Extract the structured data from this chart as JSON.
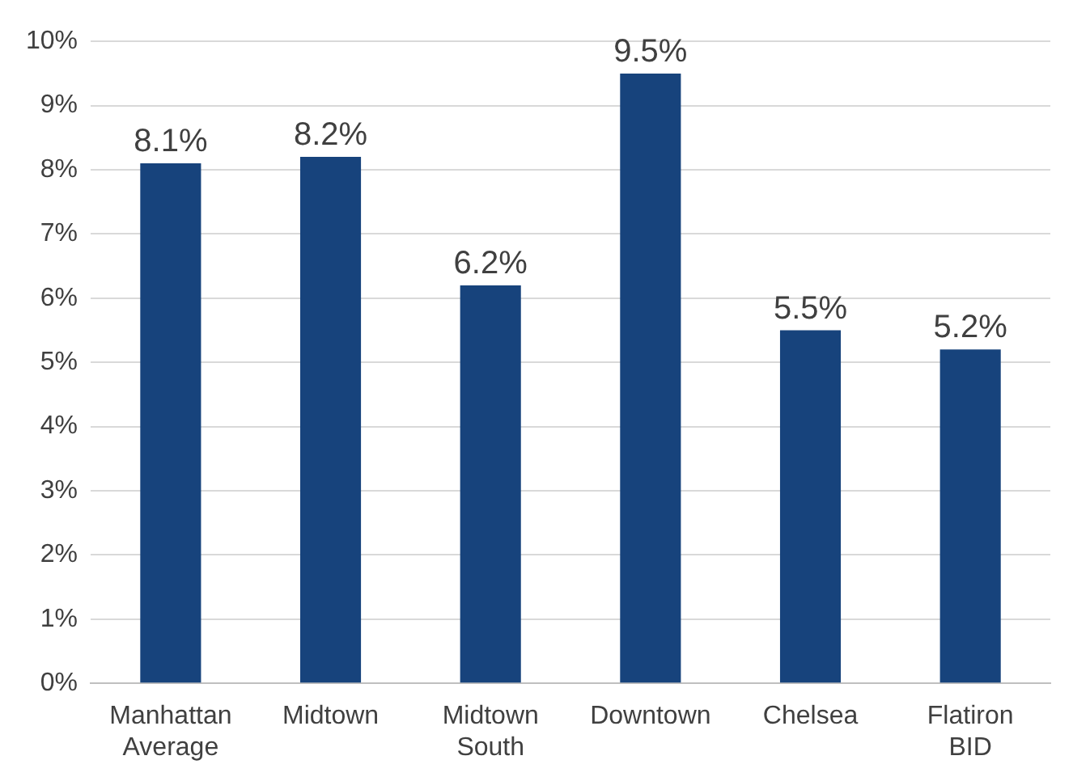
{
  "chart_data": {
    "type": "bar",
    "categories": [
      "Manhattan Average",
      "Midtown",
      "Midtown South",
      "Downtown",
      "Chelsea",
      "Flatiron BID"
    ],
    "values": [
      8.1,
      8.2,
      6.2,
      9.5,
      5.5,
      5.2
    ],
    "color": "#17437c",
    "value_labels": [
      "8.1%",
      "8.2%",
      "6.2%",
      "9.5%",
      "5.5%",
      "5.2%"
    ],
    "ylim": [
      0,
      10
    ],
    "yticks": [
      {
        "value": 0,
        "label": "0%"
      },
      {
        "value": 1,
        "label": "1%"
      },
      {
        "value": 2,
        "label": "2%"
      },
      {
        "value": 3,
        "label": "3%"
      },
      {
        "value": 4,
        "label": "4%"
      },
      {
        "value": 5,
        "label": "5%"
      },
      {
        "value": 6,
        "label": "6%"
      },
      {
        "value": 7,
        "label": "7%"
      },
      {
        "value": 8,
        "label": "8%"
      },
      {
        "value": 9,
        "label": "9%"
      },
      {
        "value": 10,
        "label": "10%"
      }
    ],
    "grid": "y",
    "legend": false
  }
}
